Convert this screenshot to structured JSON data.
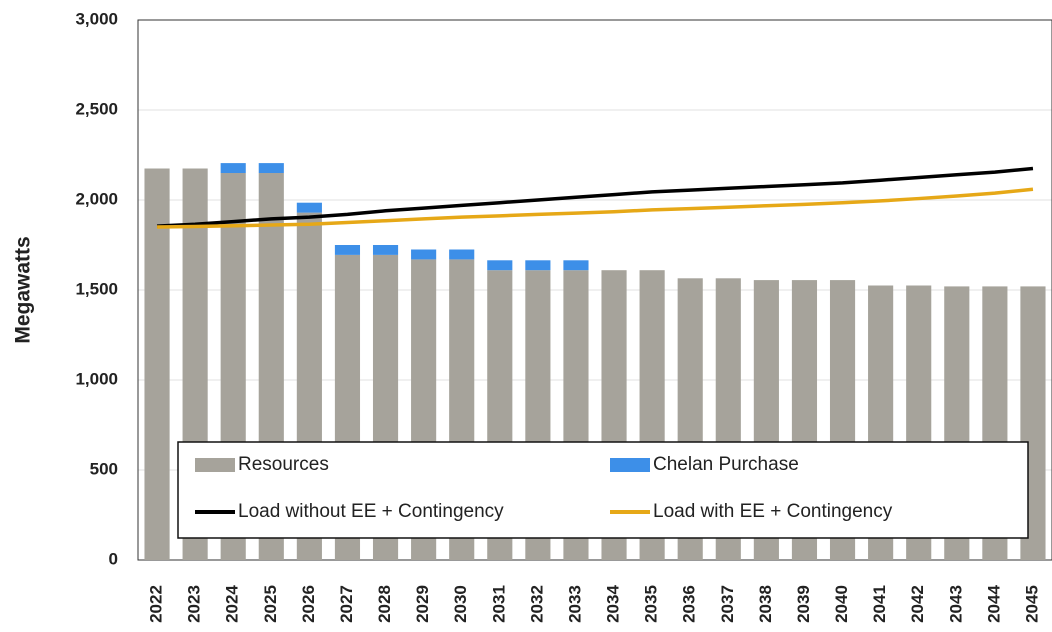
{
  "chart_data": {
    "type": "bar",
    "stacked": true,
    "ylabel": "Megawatts",
    "categories": [
      "2022",
      "2023",
      "2024",
      "2025",
      "2026",
      "2027",
      "2028",
      "2029",
      "2030",
      "2031",
      "2032",
      "2033",
      "2034",
      "2035",
      "2036",
      "2037",
      "2038",
      "2039",
      "2040",
      "2041",
      "2042",
      "2043",
      "2044",
      "2045"
    ],
    "series": [
      {
        "name": "Resources",
        "type": "bar",
        "color": "#a6a39b",
        "values": [
          2175,
          2175,
          2150,
          2150,
          1930,
          1695,
          1695,
          1670,
          1670,
          1610,
          1610,
          1610,
          1610,
          1610,
          1565,
          1565,
          1555,
          1555,
          1555,
          1525,
          1525,
          1520,
          1520,
          1520
        ]
      },
      {
        "name": "Chelan Purchase",
        "type": "bar",
        "color": "#3d8fe8",
        "values": [
          0,
          0,
          55,
          55,
          55,
          55,
          55,
          55,
          55,
          55,
          55,
          55,
          0,
          0,
          0,
          0,
          0,
          0,
          0,
          0,
          0,
          0,
          0,
          0
        ]
      },
      {
        "name": "Load without EE + Contingency",
        "type": "line",
        "color": "#000000",
        "values": [
          1855,
          1865,
          1880,
          1895,
          1905,
          1920,
          1940,
          1955,
          1970,
          1985,
          2000,
          2015,
          2030,
          2045,
          2055,
          2065,
          2075,
          2085,
          2095,
          2110,
          2125,
          2140,
          2155,
          2175
        ]
      },
      {
        "name": "Load with EE + Contingency",
        "type": "line",
        "color": "#e6a817",
        "values": [
          1850,
          1853,
          1857,
          1861,
          1865,
          1875,
          1885,
          1895,
          1905,
          1912,
          1920,
          1927,
          1935,
          1945,
          1952,
          1960,
          1968,
          1976,
          1985,
          1995,
          2008,
          2022,
          2038,
          2060
        ]
      }
    ],
    "ylim": [
      0,
      3000
    ],
    "yticks": [
      0,
      500,
      {
        "value": 1000,
        "label": "1,000"
      },
      {
        "value": 1500,
        "label": "1,500"
      },
      {
        "value": 2000,
        "label": "2,000"
      },
      {
        "value": 2500,
        "label": "2,500"
      },
      {
        "value": 3000,
        "label": "3,000"
      }
    ],
    "grid": true
  }
}
